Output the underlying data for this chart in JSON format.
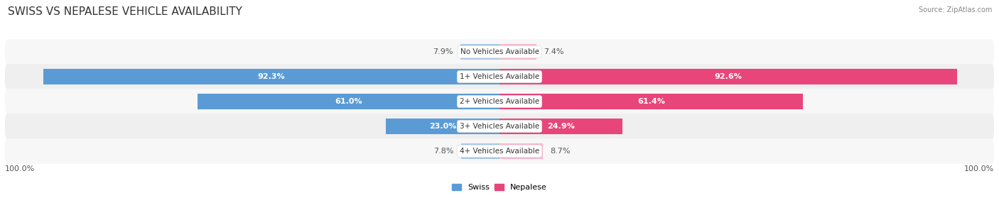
{
  "title": "SWISS VS NEPALESE VEHICLE AVAILABILITY",
  "source": "Source: ZipAtlas.com",
  "categories": [
    "No Vehicles Available",
    "1+ Vehicles Available",
    "2+ Vehicles Available",
    "3+ Vehicles Available",
    "4+ Vehicles Available"
  ],
  "swiss_values": [
    7.9,
    92.3,
    61.0,
    23.0,
    7.8
  ],
  "nepalese_values": [
    7.4,
    92.6,
    61.4,
    24.9,
    8.7
  ],
  "swiss_color_light": "#a8c8e8",
  "swiss_color_dark": "#5b9bd5",
  "nepalese_color_light": "#f7b8cc",
  "nepalese_color_dark": "#e8457a",
  "bg_color": "#ffffff",
  "row_color_odd": "#f7f7f7",
  "row_color_even": "#efefef",
  "max_value": 100.0,
  "bar_height": 0.62,
  "legend_swiss": "Swiss",
  "legend_nepalese": "Nepalese",
  "title_fontsize": 11,
  "label_fontsize": 8,
  "axis_fontsize": 8,
  "large_threshold": 15
}
